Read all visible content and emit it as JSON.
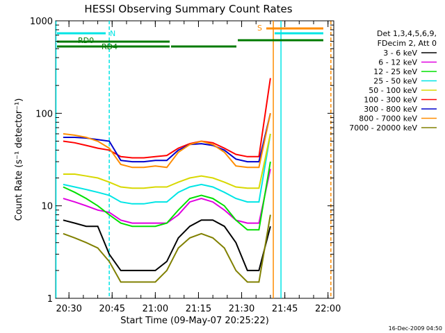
{
  "chart_data": {
    "type": "line",
    "title": "HESSI Observing Summary Count Rates",
    "xlabel": "Start Time (09-May-07 20:25:22)",
    "ylabel": "Count Rate (s⁻¹ detector⁻¹)",
    "yscale": "log",
    "ylim": [
      1,
      1000
    ],
    "xlim": [
      "20:25:22",
      "22:02:00"
    ],
    "x_ticks": [
      "20:30",
      "20:45",
      "21:00",
      "21:15",
      "21:30",
      "21:45",
      "22:00"
    ],
    "y_ticks": [
      "1",
      "10",
      "100",
      "1000"
    ],
    "legend_position": "right",
    "legend_header": [
      "Det 1,3,4,5,6,9,",
      "FDecim 2, Att 0"
    ],
    "footer_stamp": "16-Dec-2009 04:50",
    "flag_labels": {
      "N": "N",
      "RD0": "RD0",
      "RD4": "RD4",
      "S": "S"
    },
    "flag_colors": {
      "N": "#00e5e5",
      "RD": "#007a00",
      "S": "#ff8c00"
    },
    "vertical_markers": [
      {
        "time": "20:25:30",
        "color": "#00e5e5",
        "style": "solid"
      },
      {
        "time": "20:44:00",
        "color": "#00e5e5",
        "style": "dashed"
      },
      {
        "time": "21:41:00",
        "color": "#ff8c00",
        "style": "solid"
      },
      {
        "time": "21:43:40",
        "color": "#00e5e5",
        "style": "solid"
      },
      {
        "time": "22:01:00",
        "color": "#ff8c00",
        "style": "dashed"
      }
    ],
    "x": [
      "20:28",
      "20:32",
      "20:36",
      "20:40",
      "20:44",
      "20:48",
      "20:52",
      "20:56",
      "21:00",
      "21:04",
      "21:08",
      "21:12",
      "21:16",
      "21:20",
      "21:24",
      "21:28",
      "21:32",
      "21:36",
      "21:40"
    ],
    "series": [
      {
        "name": "3 - 6 keV",
        "color": "#000000",
        "values": [
          7,
          6.5,
          6,
          6,
          3,
          2,
          2,
          2,
          2,
          2.5,
          4.5,
          6,
          7,
          7,
          6,
          4,
          2,
          2,
          6
        ]
      },
      {
        "name": "6 - 12 keV",
        "color": "#e000e0",
        "values": [
          12,
          11,
          10,
          9,
          8.5,
          7,
          6.5,
          6.5,
          6.5,
          6.5,
          8,
          11,
          12,
          11,
          9,
          7,
          6.5,
          6.5,
          25
        ]
      },
      {
        "name": "12 - 25 keV",
        "color": "#00e000",
        "values": [
          16,
          14,
          12,
          10,
          8,
          6.5,
          6,
          6,
          6,
          6.5,
          9,
          12,
          13,
          12,
          10,
          7,
          5.5,
          5.5,
          30
        ]
      },
      {
        "name": "25 - 50 keV",
        "color": "#00e5e5",
        "values": [
          17,
          16,
          15,
          14,
          13,
          11,
          10.5,
          10.5,
          11,
          11,
          14,
          16,
          17,
          16,
          14,
          12,
          11,
          11,
          60
        ]
      },
      {
        "name": "50 - 100 keV",
        "color": "#d8d800",
        "values": [
          22,
          22,
          21,
          20,
          18,
          16,
          15.5,
          15.5,
          16,
          16,
          18,
          20,
          21,
          20,
          18,
          16,
          15.5,
          15.5,
          60
        ]
      },
      {
        "name": "100 - 300 keV",
        "color": "#ff0000",
        "values": [
          50,
          48,
          45,
          42,
          40,
          34,
          33,
          33,
          34,
          35,
          42,
          47,
          50,
          48,
          42,
          36,
          34,
          34,
          240
        ]
      },
      {
        "name": "300 - 800 keV",
        "color": "#0000cc",
        "values": [
          55,
          55,
          54,
          52,
          50,
          31,
          30,
          30,
          31,
          31,
          40,
          46,
          47,
          45,
          40,
          32,
          30,
          30,
          100
        ]
      },
      {
        "name": "800 - 7000 keV",
        "color": "#ff8c00",
        "values": [
          60,
          58,
          55,
          50,
          42,
          28,
          26,
          26,
          27,
          26,
          38,
          46,
          50,
          46,
          38,
          27,
          26,
          26,
          100
        ]
      },
      {
        "name": "7000 - 20000 keV",
        "color": "#808000",
        "values": [
          5,
          4.5,
          4,
          3.5,
          2.5,
          1.5,
          1.5,
          1.5,
          1.5,
          2,
          3.5,
          4.5,
          5,
          4.5,
          3.5,
          2,
          1.5,
          1.5,
          8
        ]
      }
    ]
  }
}
